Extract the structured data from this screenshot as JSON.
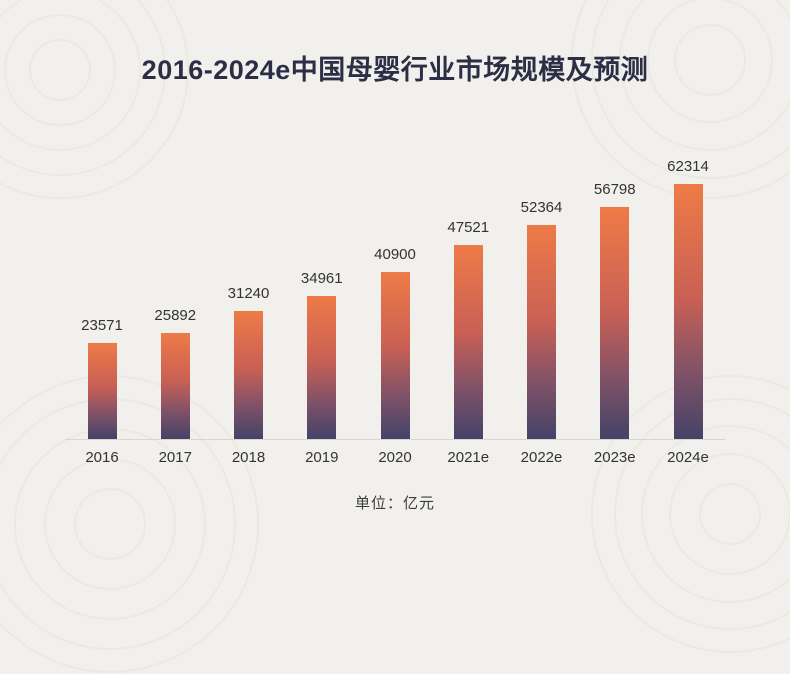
{
  "title": "2016-2024e中国母婴行业市场规模及预测",
  "unit_label": "单位：亿元",
  "chart_data": {
    "type": "bar",
    "title": "2016-2024e中国母婴行业市场规模及预测",
    "categories": [
      "2016",
      "2017",
      "2018",
      "2019",
      "2020",
      "2021e",
      "2022e",
      "2023e",
      "2024e"
    ],
    "values": [
      23571,
      25892,
      31240,
      34961,
      40900,
      47521,
      52364,
      56798,
      62314
    ],
    "xlabel": "",
    "ylabel": "单位：亿元",
    "ylim": [
      0,
      65000
    ],
    "grid": false,
    "legend": "none",
    "data_labels": true,
    "colors": {
      "background": "#f1f0ec",
      "bar_gradient_top": "#ee7b47",
      "bar_gradient_bottom": "#444368",
      "title_color": "#2c2e45",
      "label_color": "#333333",
      "axis_color": "#d9d6cd"
    }
  }
}
